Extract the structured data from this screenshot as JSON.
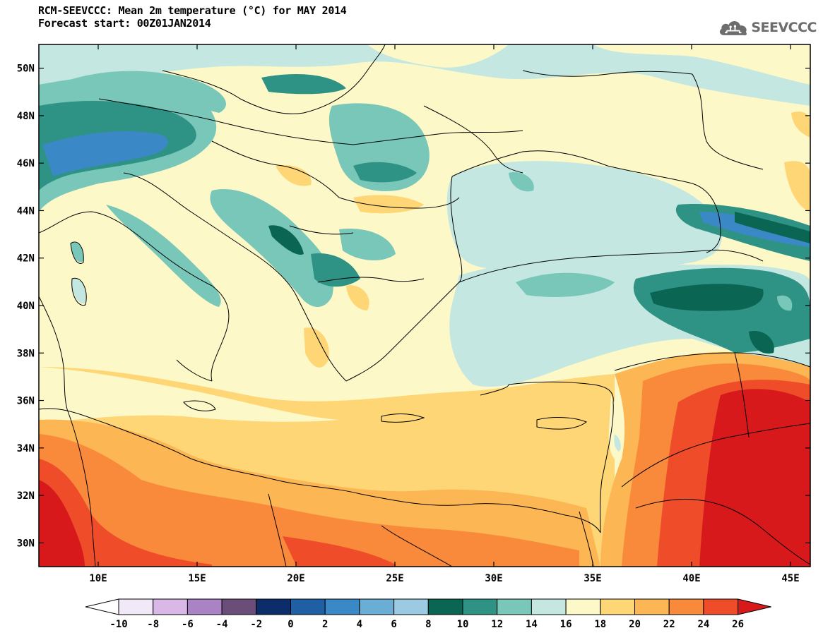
{
  "title": {
    "line1": "RCM-SEEVCCC: Mean 2m temperature (°C) for MAY 2014",
    "line2": "Forecast start: 00Z01JAN2014"
  },
  "logo": {
    "text": "SEEVCCC",
    "icon": "cloud-icon",
    "color": "#6d6d6d"
  },
  "map": {
    "lon_range": [
      7,
      46
    ],
    "lat_range": [
      29,
      51
    ],
    "lon_ticks": [
      "10E",
      "15E",
      "20E",
      "25E",
      "30E",
      "35E",
      "40E",
      "45E"
    ],
    "lat_ticks": [
      "30N",
      "32N",
      "34N",
      "36N",
      "38N",
      "40N",
      "42N",
      "44N",
      "46N",
      "48N",
      "50N"
    ],
    "lon_tick_values": [
      10,
      15,
      20,
      25,
      30,
      35,
      40,
      45
    ],
    "lat_tick_values": [
      30,
      32,
      34,
      36,
      38,
      40,
      42,
      44,
      46,
      48,
      50
    ]
  },
  "colorbar": {
    "labels": [
      "-10",
      "-8",
      "-6",
      "-4",
      "-2",
      "0",
      "2",
      "4",
      "6",
      "8",
      "10",
      "12",
      "14",
      "16",
      "18",
      "20",
      "22",
      "24",
      "26"
    ],
    "colors": [
      "#f2e9f8",
      "#d9b8e8",
      "#a983c4",
      "#6a4e79",
      "#0c2d6a",
      "#1f5fa3",
      "#3a88c5",
      "#6aaed6",
      "#9ccae3",
      "#0a6653",
      "#2e9384",
      "#78c7b9",
      "#c4e7e1",
      "#fdf8c8",
      "#fed675",
      "#fcb653",
      "#f98a3c",
      "#ef4c2a"
    ],
    "low_color": "#ffffff",
    "high_color": "#d7191c"
  }
}
